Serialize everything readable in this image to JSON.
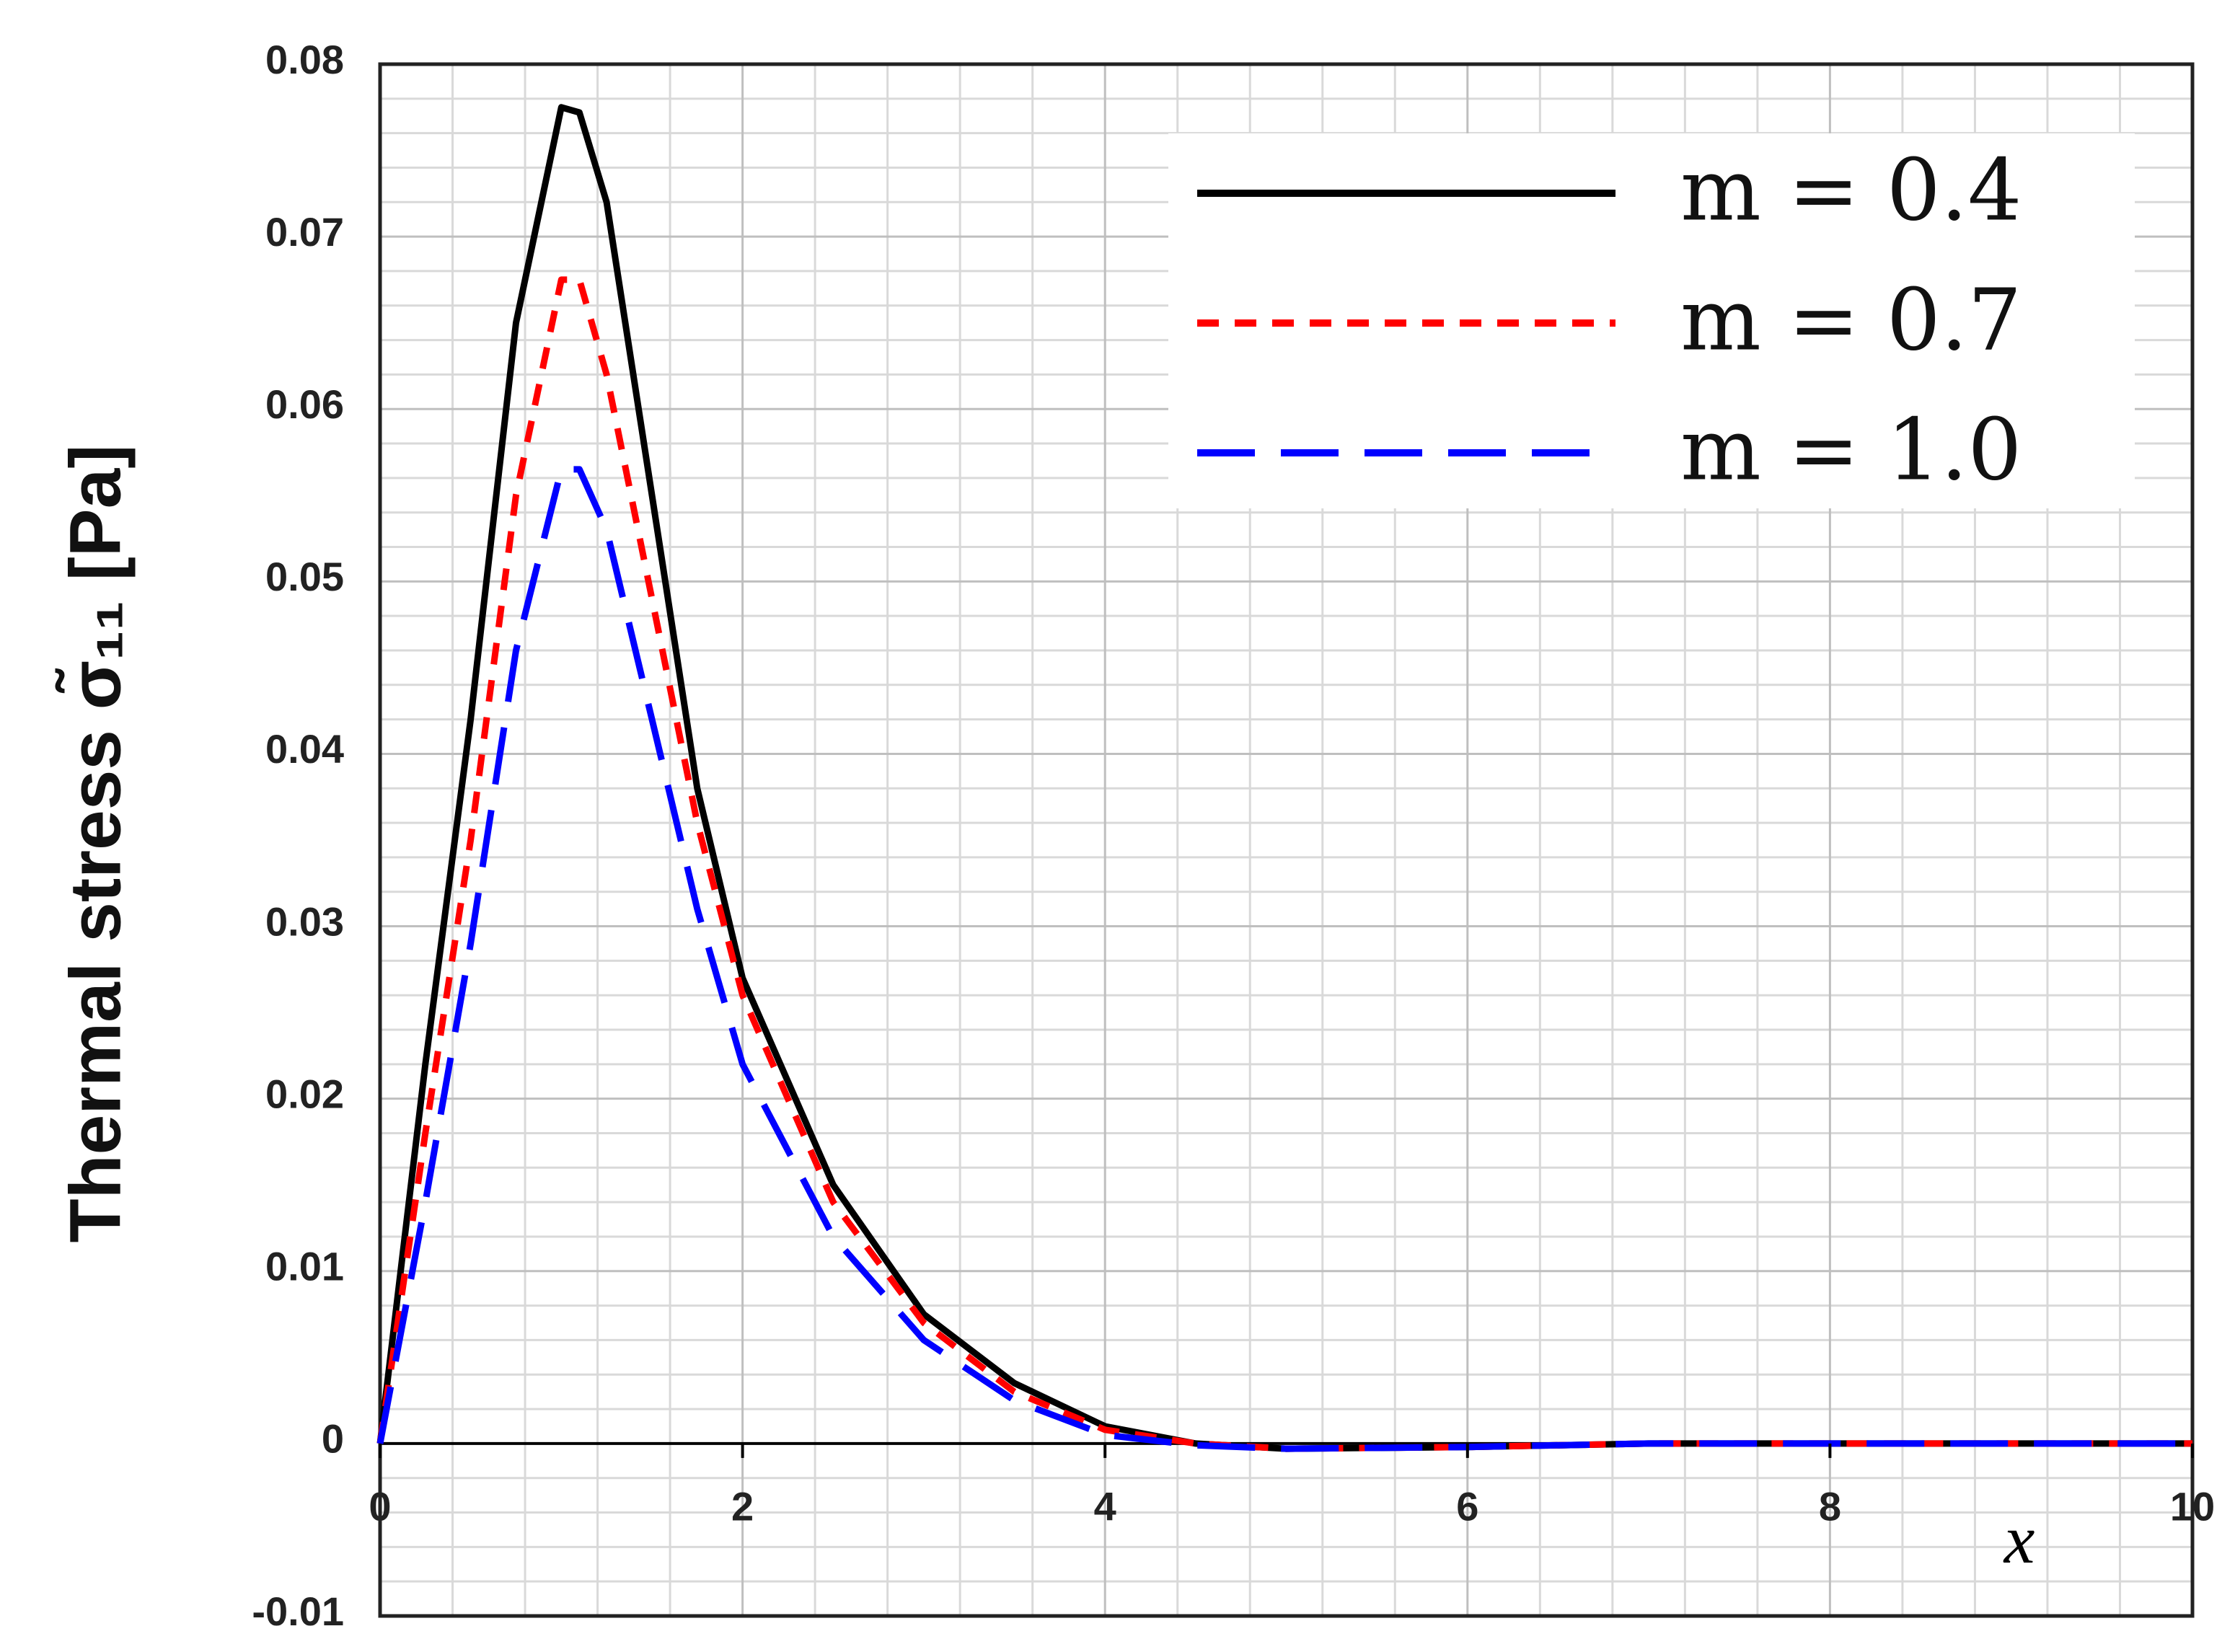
{
  "chart_data": {
    "type": "line",
    "x_label": "x",
    "y_label": "Thermal stress σ̃₁₁ [Pa]",
    "x": [
      0,
      0.25,
      0.5,
      0.75,
      1,
      1.1,
      1.25,
      1.5,
      1.75,
      2,
      2.5,
      3,
      3.5,
      4,
      4.5,
      5,
      6,
      7,
      8,
      9,
      10
    ],
    "series": [
      {
        "name": "m = 0.4",
        "color": "#000000",
        "dash": "solid",
        "values": [
          0,
          0.022,
          0.042,
          0.065,
          0.0775,
          0.0772,
          0.072,
          0.055,
          0.038,
          0.027,
          0.015,
          0.0075,
          0.0035,
          0.001,
          0,
          -0.0003,
          -0.0002,
          0,
          0,
          0,
          0
        ]
      },
      {
        "name": "m = 0.7",
        "color": "#ff0000",
        "dash": "dashed",
        "values": [
          0,
          0.018,
          0.035,
          0.055,
          0.0675,
          0.0675,
          0.062,
          0.049,
          0.036,
          0.026,
          0.014,
          0.007,
          0.003,
          0.0008,
          0,
          -0.0003,
          -0.0002,
          0,
          0,
          0,
          0
        ]
      },
      {
        "name": "m = 1.0",
        "color": "#0000ff",
        "dash": "long-dash",
        "values": [
          0,
          0.014,
          0.029,
          0.046,
          0.0565,
          0.0565,
          0.053,
          0.042,
          0.031,
          0.022,
          0.012,
          0.006,
          0.0025,
          0.0005,
          -0.0001,
          -0.0003,
          -0.0002,
          0,
          0,
          0,
          0
        ]
      }
    ],
    "xlim": [
      0,
      10
    ],
    "ylim": [
      -0.01,
      0.08
    ],
    "xticks": [
      0,
      2,
      4,
      6,
      8,
      10
    ],
    "yticks": [
      -0.01,
      0,
      0.01,
      0.02,
      0.03,
      0.04,
      0.05,
      0.06,
      0.07,
      0.08
    ],
    "grid": true,
    "legend_position": "upper right"
  }
}
